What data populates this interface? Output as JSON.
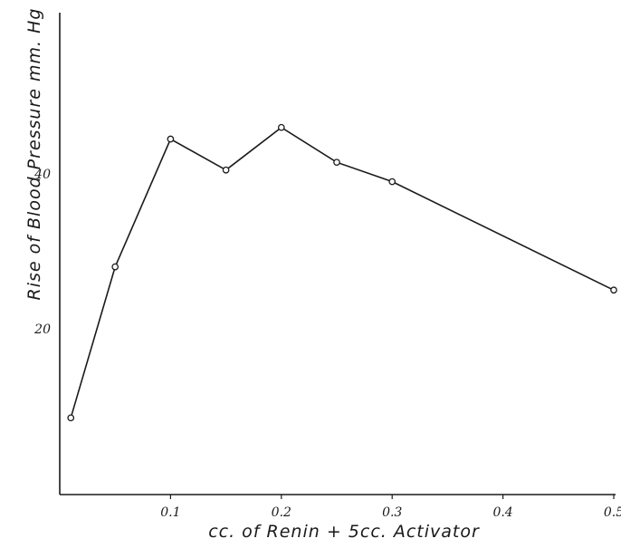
{
  "chart_data": {
    "type": "line",
    "xlabel": "cc. of Renin + 5cc. Activator",
    "ylabel": "Rise of Blood Pressure  mm. Hg",
    "xlim": [
      0.0,
      0.5
    ],
    "ylim": [
      5,
      55
    ],
    "x_ticks": [
      {
        "value": 0.1,
        "label": "0.1"
      },
      {
        "value": 0.2,
        "label": "0.2"
      },
      {
        "value": 0.3,
        "label": "0.3"
      },
      {
        "value": 0.4,
        "label": "0.4"
      },
      {
        "value": 0.5,
        "label": "0.5"
      }
    ],
    "y_ticks": [
      {
        "value": 20,
        "label": "20"
      },
      {
        "value": 40,
        "label": "40"
      }
    ],
    "grid": false,
    "series": [
      {
        "x": [
          0.01,
          0.05,
          0.1,
          0.15,
          0.2,
          0.25,
          0.3,
          0.5
        ],
        "y": [
          8.5,
          28,
          44.5,
          40.5,
          46,
          41.5,
          39,
          25
        ]
      }
    ]
  }
}
